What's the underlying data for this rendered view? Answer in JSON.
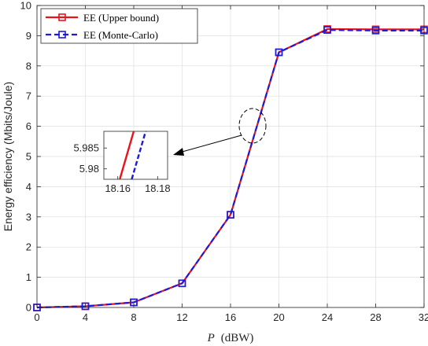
{
  "chart_data": {
    "type": "line",
    "title": "",
    "xlabel_var": "P",
    "xlabel_unit": "(dBW)",
    "ylabel": "Energy efficiency (Mbits/Joule)",
    "x": [
      0,
      4,
      8,
      12,
      16,
      20,
      24,
      28,
      32
    ],
    "xlim": [
      0,
      32
    ],
    "ylim": [
      0,
      10
    ],
    "xticks": [
      "0",
      "4",
      "8",
      "12",
      "16",
      "20",
      "24",
      "28",
      "32"
    ],
    "yticks": [
      "0",
      "1",
      "2",
      "3",
      "4",
      "5",
      "6",
      "7",
      "8",
      "9",
      "10"
    ],
    "grid": true,
    "legend_position": "top-left",
    "series": [
      {
        "name": "EE (Upper bound)",
        "color": "#e8141c",
        "style": "solid",
        "marker": "square",
        "values": [
          0.0,
          0.04,
          0.17,
          0.8,
          3.07,
          8.45,
          9.22,
          9.21,
          9.21
        ]
      },
      {
        "name": "EE (Monte-Carlo)",
        "color": "#1b1bd8",
        "style": "dashed",
        "marker": "square",
        "values": [
          0.0,
          0.04,
          0.17,
          0.8,
          3.07,
          8.45,
          9.19,
          9.17,
          9.17
        ]
      }
    ],
    "inset": {
      "xticks": [
        "18.16",
        "18.18"
      ],
      "yticks": [
        "5.985",
        "5.98"
      ],
      "xlim": [
        18.153,
        18.185
      ],
      "ylim": [
        5.9775,
        5.989
      ],
      "series_lines": [
        [
          [
            18.161,
            5.9775
          ],
          [
            18.168,
            5.989
          ]
        ],
        [
          [
            18.167,
            5.9775
          ],
          [
            18.174,
            5.989
          ]
        ]
      ]
    }
  }
}
